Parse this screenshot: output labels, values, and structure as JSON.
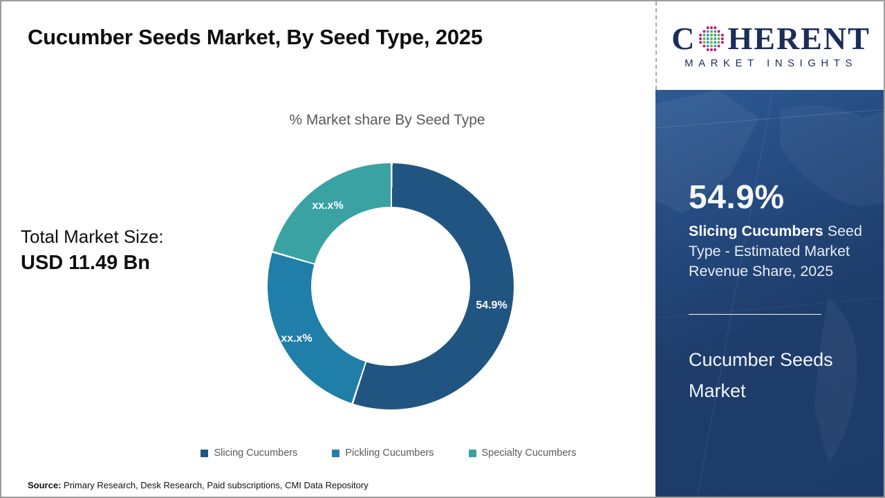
{
  "header": {
    "title": "Cucumber Seeds Market, By Seed Type, 2025"
  },
  "logo": {
    "word_start": "C",
    "word_end": "HERENT",
    "subtitle": "MARKET INSIGHTS",
    "navy": "#1b2d5b",
    "globe_teal": "#2ea7a5",
    "globe_green": "#66b14d",
    "globe_magenta": "#c0177c"
  },
  "chart_data": {
    "type": "pie",
    "subtype": "donut",
    "title": "% Market share By Seed Type",
    "categories": [
      "Slicing Cucumbers",
      "Pickling Cucumbers",
      "Specialty Cucumbers"
    ],
    "values": [
      54.9,
      24.5,
      20.6
    ],
    "value_labels": [
      "54.9%",
      "xx.x%",
      "xx.x%"
    ],
    "colors": [
      "#205581",
      "#1f7fa8",
      "#3aa2a2"
    ],
    "hole_ratio": 0.646,
    "start_angle_deg": 0,
    "direction": "clockwise",
    "legend_position": "bottom",
    "labels_note": "only the Slicing Cucumbers slice shows a numeric label (54.9%); other slice values estimated from arc angles"
  },
  "total": {
    "label": "Total Market Size:",
    "value": "USD 11.49 Bn"
  },
  "source": {
    "label": "Source:",
    "text": " Primary Research, Desk Research, Paid subscriptions, CMI Data Repository"
  },
  "panel": {
    "stat": "54.9%",
    "desc_bold": "Slicing Cucumbers",
    "desc_rest": " Seed Type - Estimated Market Revenue Share, 2025",
    "title": "Cucumber Seeds Market"
  }
}
